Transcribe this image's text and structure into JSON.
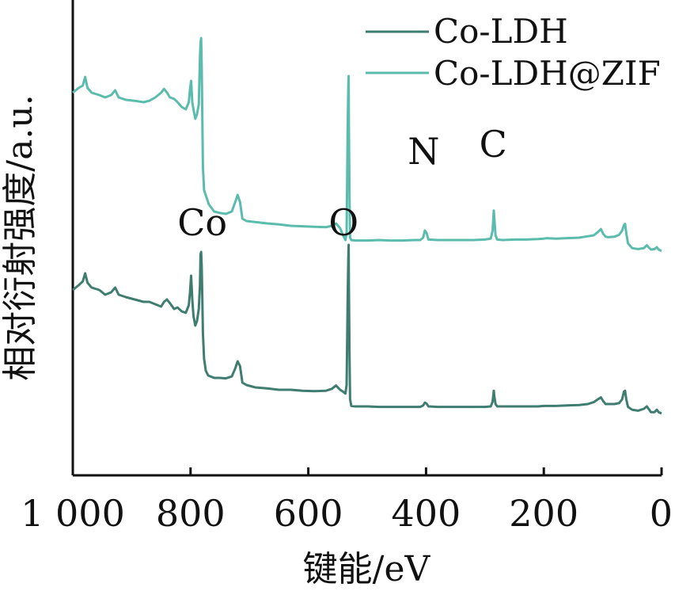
{
  "chart_data": {
    "type": "line",
    "title": "",
    "xlabel": "键能/eV",
    "ylabel": "相对衍射强度/a.u.",
    "xlim": [
      1000,
      0
    ],
    "x_reversed": true,
    "x_ticks": [
      1000,
      800,
      600,
      400,
      200,
      0
    ],
    "x_tick_labels": [
      "1 000",
      "800",
      "600",
      "400",
      "200",
      "0"
    ],
    "y_ticks": [],
    "y_tick_labels": [],
    "ylim": [
      0,
      100
    ],
    "grid": false,
    "legend_position": "top-right",
    "series": [
      {
        "name": "Co-LDH",
        "color": "#3f7d70",
        "points": [
          [
            1000,
            39.0
          ],
          [
            995,
            39.5
          ],
          [
            990,
            40.0
          ],
          [
            983,
            40.8
          ],
          [
            979,
            42.5
          ],
          [
            975,
            40.5
          ],
          [
            968,
            39.5
          ],
          [
            955,
            39.0
          ],
          [
            945,
            38.0
          ],
          [
            935,
            38.5
          ],
          [
            928,
            39.5
          ],
          [
            922,
            38.0
          ],
          [
            910,
            37.5
          ],
          [
            895,
            37.0
          ],
          [
            880,
            36.5
          ],
          [
            870,
            36.5
          ],
          [
            860,
            36.0
          ],
          [
            850,
            35.5
          ],
          [
            845,
            36.5
          ],
          [
            840,
            37.0
          ],
          [
            835,
            36.2
          ],
          [
            828,
            35.0
          ],
          [
            822,
            35.3
          ],
          [
            815,
            34.5
          ],
          [
            808,
            34.2
          ],
          [
            803,
            35.8
          ],
          [
            801,
            38.5
          ],
          [
            799,
            42.0
          ],
          [
            797,
            37.0
          ],
          [
            795,
            33.5
          ],
          [
            792,
            31.5
          ],
          [
            789,
            32.5
          ],
          [
            786,
            35.0
          ],
          [
            784,
            40.0
          ],
          [
            783,
            46.5
          ],
          [
            782,
            47.0
          ],
          [
            781,
            44.0
          ],
          [
            780,
            37.0
          ],
          [
            779,
            30.0
          ],
          [
            777,
            24.5
          ],
          [
            774,
            22.0
          ],
          [
            770,
            21.0
          ],
          [
            760,
            20.5
          ],
          [
            750,
            20.5
          ],
          [
            740,
            20.4
          ],
          [
            730,
            20.8
          ],
          [
            724,
            22.5
          ],
          [
            720,
            24.0
          ],
          [
            716,
            23.0
          ],
          [
            712,
            19.5
          ],
          [
            705,
            19.0
          ],
          [
            690,
            18.5
          ],
          [
            670,
            18.3
          ],
          [
            650,
            18.0
          ],
          [
            630,
            18.0
          ],
          [
            610,
            17.8
          ],
          [
            590,
            17.7
          ],
          [
            570,
            17.8
          ],
          [
            560,
            18.2
          ],
          [
            553,
            18.9
          ],
          [
            546,
            18.0
          ],
          [
            541,
            17.6
          ],
          [
            537,
            17.2
          ],
          [
            535,
            19.0
          ],
          [
            534,
            28.0
          ],
          [
            533,
            38.0
          ],
          [
            532,
            46.0
          ],
          [
            531.5,
            48.5
          ],
          [
            531,
            40.0
          ],
          [
            530,
            25.0
          ],
          [
            529,
            16.0
          ],
          [
            527,
            14.6
          ],
          [
            520,
            14.5
          ],
          [
            500,
            14.5
          ],
          [
            480,
            14.4
          ],
          [
            460,
            14.4
          ],
          [
            440,
            14.4
          ],
          [
            420,
            14.4
          ],
          [
            410,
            14.4
          ],
          [
            405,
            14.7
          ],
          [
            402,
            15.3
          ],
          [
            399,
            15.1
          ],
          [
            396,
            14.5
          ],
          [
            380,
            14.4
          ],
          [
            360,
            14.4
          ],
          [
            340,
            14.4
          ],
          [
            320,
            14.4
          ],
          [
            300,
            14.4
          ],
          [
            290,
            14.5
          ],
          [
            287,
            15.5
          ],
          [
            285,
            17.8
          ],
          [
            284,
            16.6
          ],
          [
            282,
            15.0
          ],
          [
            279,
            14.5
          ],
          [
            270,
            14.5
          ],
          [
            250,
            14.5
          ],
          [
            230,
            14.5
          ],
          [
            210,
            14.5
          ],
          [
            200,
            14.6
          ],
          [
            195,
            14.6
          ],
          [
            180,
            14.6
          ],
          [
            160,
            14.7
          ],
          [
            140,
            14.8
          ],
          [
            125,
            15.0
          ],
          [
            115,
            15.4
          ],
          [
            108,
            16.0
          ],
          [
            103,
            16.4
          ],
          [
            99,
            15.6
          ],
          [
            95,
            15.0
          ],
          [
            90,
            15.0
          ],
          [
            80,
            15.0
          ],
          [
            72,
            15.2
          ],
          [
            67,
            16.0
          ],
          [
            64,
            17.6
          ],
          [
            62,
            17.8
          ],
          [
            60,
            16.0
          ],
          [
            57,
            14.4
          ],
          [
            50,
            13.8
          ],
          [
            40,
            13.6
          ],
          [
            30,
            14.0
          ],
          [
            25,
            14.5
          ],
          [
            22,
            14.0
          ],
          [
            18,
            13.3
          ],
          [
            12,
            13.3
          ],
          [
            8,
            13.8
          ],
          [
            5,
            13.3
          ],
          [
            0,
            13.0
          ]
        ]
      },
      {
        "name": "Co-LDH@ZIF",
        "color": "#5bbcae",
        "points": [
          [
            1000,
            80.5
          ],
          [
            995,
            81.0
          ],
          [
            990,
            81.5
          ],
          [
            983,
            82.0
          ],
          [
            979,
            83.8
          ],
          [
            975,
            81.5
          ],
          [
            968,
            80.5
          ],
          [
            955,
            80.0
          ],
          [
            945,
            79.5
          ],
          [
            935,
            80.0
          ],
          [
            928,
            81.0
          ],
          [
            922,
            79.5
          ],
          [
            910,
            79.0
          ],
          [
            895,
            78.8
          ],
          [
            880,
            78.5
          ],
          [
            870,
            78.8
          ],
          [
            860,
            79.5
          ],
          [
            850,
            80.5
          ],
          [
            845,
            81.3
          ],
          [
            840,
            80.5
          ],
          [
            835,
            79.5
          ],
          [
            828,
            79.2
          ],
          [
            822,
            78.5
          ],
          [
            815,
            77.5
          ],
          [
            808,
            77.0
          ],
          [
            803,
            78.5
          ],
          [
            801,
            81.2
          ],
          [
            799,
            83.0
          ],
          [
            797,
            78.5
          ],
          [
            795,
            77.0
          ],
          [
            792,
            75.0
          ],
          [
            789,
            76.0
          ],
          [
            786,
            78.0
          ],
          [
            784,
            88.0
          ],
          [
            783,
            91.0
          ],
          [
            782,
            92.0
          ],
          [
            781,
            86.0
          ],
          [
            780,
            75.0
          ],
          [
            779,
            65.0
          ],
          [
            777,
            60.0
          ],
          [
            773,
            58.5
          ],
          [
            769,
            57.0
          ],
          [
            760,
            55.5
          ],
          [
            750,
            55.2
          ],
          [
            740,
            55.0
          ],
          [
            730,
            55.5
          ],
          [
            724,
            57.5
          ],
          [
            720,
            59.0
          ],
          [
            716,
            57.5
          ],
          [
            712,
            54.0
          ],
          [
            705,
            53.5
          ],
          [
            690,
            53.3
          ],
          [
            670,
            53.0
          ],
          [
            650,
            52.8
          ],
          [
            630,
            52.5
          ],
          [
            610,
            52.4
          ],
          [
            590,
            52.3
          ],
          [
            570,
            52.2
          ],
          [
            560,
            52.5
          ],
          [
            553,
            53.0
          ],
          [
            546,
            52.0
          ],
          [
            541,
            50.5
          ],
          [
            537,
            49.5
          ],
          [
            535,
            51.0
          ],
          [
            534,
            62.0
          ],
          [
            533,
            74.0
          ],
          [
            532,
            82.0
          ],
          [
            531.5,
            84.0
          ],
          [
            531,
            74.0
          ],
          [
            530,
            58.0
          ],
          [
            529,
            50.0
          ],
          [
            527,
            49.5
          ],
          [
            520,
            49.4
          ],
          [
            500,
            49.4
          ],
          [
            480,
            49.5
          ],
          [
            460,
            49.4
          ],
          [
            440,
            49.4
          ],
          [
            420,
            49.5
          ],
          [
            410,
            49.5
          ],
          [
            405,
            50.0
          ],
          [
            402,
            51.5
          ],
          [
            399,
            51.0
          ],
          [
            396,
            49.6
          ],
          [
            380,
            49.5
          ],
          [
            360,
            49.5
          ],
          [
            340,
            49.5
          ],
          [
            320,
            49.5
          ],
          [
            300,
            49.6
          ],
          [
            290,
            49.8
          ],
          [
            287,
            51.5
          ],
          [
            285,
            55.7
          ],
          [
            284,
            54.0
          ],
          [
            282,
            50.5
          ],
          [
            279,
            49.6
          ],
          [
            270,
            49.5
          ],
          [
            250,
            49.6
          ],
          [
            230,
            49.6
          ],
          [
            210,
            49.7
          ],
          [
            200,
            49.8
          ],
          [
            195,
            49.9
          ],
          [
            180,
            49.8
          ],
          [
            160,
            49.9
          ],
          [
            140,
            50.0
          ],
          [
            125,
            50.3
          ],
          [
            115,
            50.5
          ],
          [
            108,
            51.2
          ],
          [
            103,
            51.8
          ],
          [
            99,
            50.8
          ],
          [
            95,
            50.2
          ],
          [
            90,
            50.1
          ],
          [
            80,
            50.2
          ],
          [
            72,
            50.6
          ],
          [
            67,
            51.5
          ],
          [
            64,
            52.6
          ],
          [
            62,
            52.9
          ],
          [
            60,
            51.0
          ],
          [
            57,
            48.8
          ],
          [
            50,
            47.8
          ],
          [
            40,
            47.6
          ],
          [
            30,
            47.8
          ],
          [
            25,
            48.4
          ],
          [
            22,
            48.0
          ],
          [
            18,
            47.5
          ],
          [
            12,
            47.6
          ],
          [
            8,
            48.0
          ],
          [
            5,
            47.5
          ],
          [
            0,
            47.2
          ]
        ]
      }
    ],
    "annotations": [
      {
        "text": "Co",
        "x": 780,
        "y": 50.5,
        "series": "Co-LDH"
      },
      {
        "text": "O",
        "x": 540,
        "y": 50.5,
        "series": "Co-LDH"
      },
      {
        "text": "N",
        "x": 404,
        "y": 65.5,
        "series": "Co-LDH@ZIF"
      },
      {
        "text": "C",
        "x": 286,
        "y": 67.0,
        "series": "Co-LDH@ZIF"
      }
    ]
  }
}
